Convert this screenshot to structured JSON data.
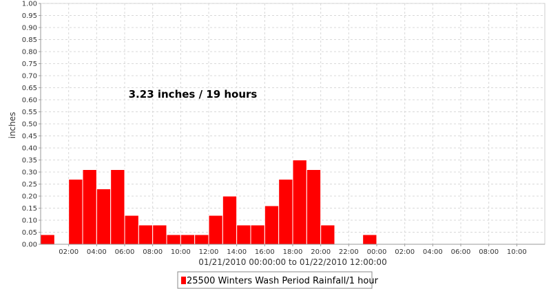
{
  "chart_data": {
    "type": "bar",
    "ylabel": "inches",
    "xlabel": "01/21/2010 00:00:00 to 01/22/2010 12:00:00",
    "annotation": "3.23 inches / 19 hours",
    "ylim": [
      0,
      1.0
    ],
    "xlim_hours": [
      0,
      36
    ],
    "grid": true,
    "legend_position": "bottom-center",
    "colors": {
      "bar": "#ff0000",
      "bar_edge": "#ffffff",
      "grid": "#d8d8d8",
      "axis": "#999999"
    },
    "y_ticks": [
      "0.00",
      "0.05",
      "0.10",
      "0.15",
      "0.20",
      "0.25",
      "0.30",
      "0.35",
      "0.40",
      "0.45",
      "0.50",
      "0.55",
      "0.60",
      "0.65",
      "0.70",
      "0.75",
      "0.80",
      "0.85",
      "0.90",
      "0.95",
      "1.00"
    ],
    "x_ticks": [
      "02:00",
      "04:00",
      "06:00",
      "08:00",
      "10:00",
      "12:00",
      "14:00",
      "16:00",
      "18:00",
      "20:00",
      "22:00",
      "00:00",
      "02:00",
      "04:00",
      "06:00",
      "08:00",
      "10:00"
    ],
    "x_tick_hours": [
      2,
      4,
      6,
      8,
      10,
      12,
      14,
      16,
      18,
      20,
      22,
      24,
      26,
      28,
      30,
      32,
      34
    ],
    "series": [
      {
        "name": "25500 Winters Wash Period Rainfall/1 hour",
        "hours": [
          0,
          2,
          3,
          4,
          5,
          6,
          7,
          8,
          9,
          10,
          11,
          12,
          13,
          14,
          15,
          16,
          17,
          18,
          19,
          20,
          23
        ],
        "values": [
          0.04,
          0.27,
          0.31,
          0.23,
          0.31,
          0.12,
          0.08,
          0.08,
          0.04,
          0.04,
          0.04,
          0.12,
          0.2,
          0.08,
          0.08,
          0.16,
          0.27,
          0.35,
          0.31,
          0.08,
          0.04
        ]
      }
    ]
  }
}
